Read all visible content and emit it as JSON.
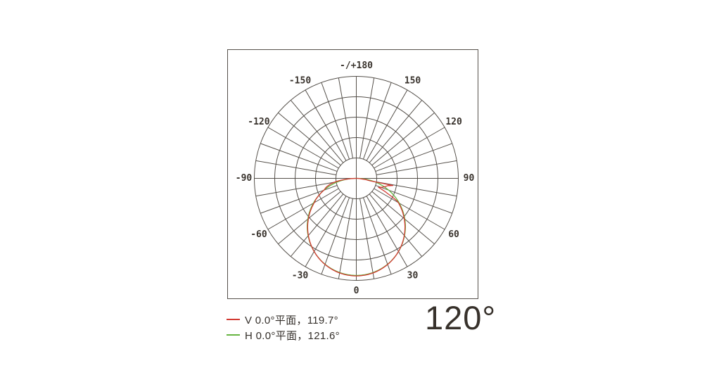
{
  "colors": {
    "grid_line": "#55504a",
    "tick_label": "#39332d",
    "series_v": "#d23a32",
    "series_h": "#66b441",
    "text": "#35302b"
  },
  "chart_data": {
    "type": "polar",
    "kind": "photometric-intensity-distribution",
    "orientation": "0-at-bottom, positive angles right, -/+180 at top",
    "grid": {
      "ring_count": 5,
      "outer_radius_px": 145,
      "radial_step_deg": 10,
      "tick_label_radius_px": 160,
      "line_color": "#55504a",
      "label_color": "#39332d"
    },
    "angle_ticks": [
      {
        "value": 180,
        "label": "-/+180"
      },
      {
        "value": 150,
        "label": "150"
      },
      {
        "value": 120,
        "label": "120"
      },
      {
        "value": 90,
        "label": "90"
      },
      {
        "value": 60,
        "label": "60"
      },
      {
        "value": 30,
        "label": "30"
      },
      {
        "value": 0,
        "label": "0"
      },
      {
        "value": -30,
        "label": "-30"
      },
      {
        "value": -60,
        "label": "-60"
      },
      {
        "value": -90,
        "label": "-90"
      },
      {
        "value": -120,
        "label": "-120"
      },
      {
        "value": -150,
        "label": "-150"
      }
    ],
    "series": [
      {
        "id": "v",
        "name": "V 0.0°平面",
        "beam_angle_deg": 119.7,
        "peak_fraction": 0.956,
        "color": "#d23a32",
        "anomalies": [
          [
            [
              90,
              0
            ],
            [
              84,
              8
            ],
            [
              80,
              20
            ],
            [
              79,
              53
            ],
            [
              77,
              46
            ],
            [
              72,
              40
            ],
            [
              68,
              34
            ],
            [
              64,
              50
            ],
            [
              61,
              66
            ]
          ],
          [
            [
              -62,
              66
            ],
            [
              -70,
              49
            ],
            [
              -74,
              44
            ],
            [
              -78,
              37
            ],
            [
              -82,
              26
            ],
            [
              -86,
              12
            ],
            [
              -90,
              0
            ]
          ]
        ]
      },
      {
        "id": "h",
        "name": "H 0.0°平面",
        "beam_angle_deg": 121.6,
        "peak_fraction": 0.951,
        "color": "#66b441",
        "anomalies": []
      }
    ]
  },
  "legend": {
    "items": [
      {
        "label": "V 0.0°平面，119.7°",
        "color": "#d23a32"
      },
      {
        "label": "H 0.0°平面，121.6°",
        "color": "#66b441"
      }
    ]
  },
  "footer": {
    "beam_angle_label": "120°"
  }
}
